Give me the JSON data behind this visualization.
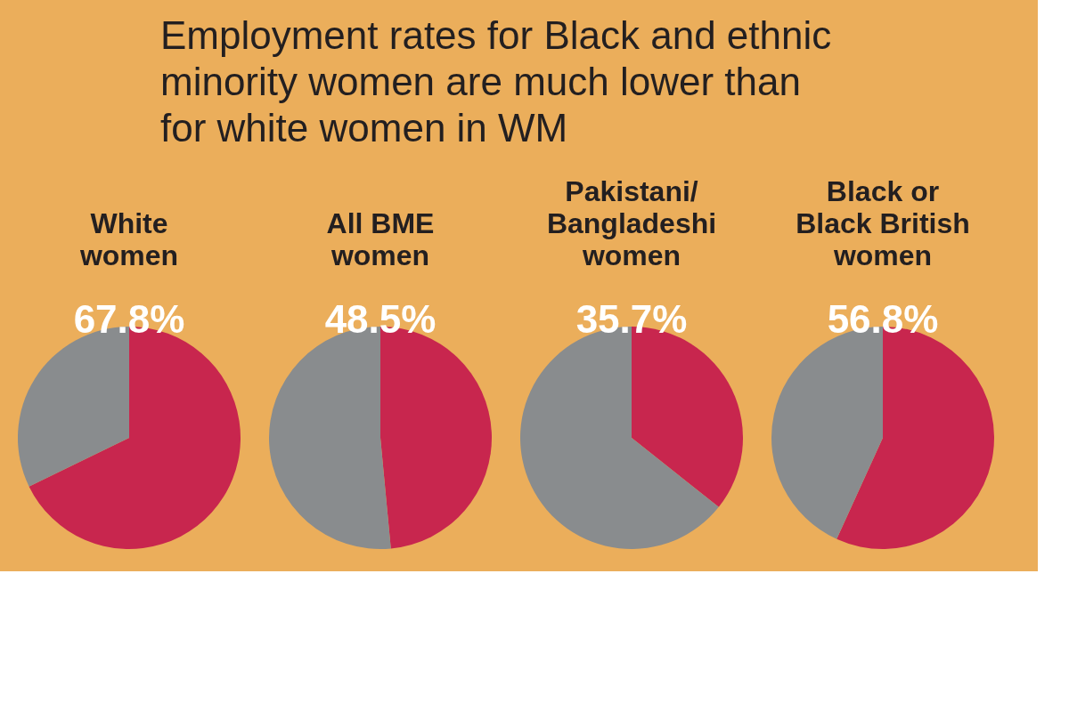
{
  "chart_data": [
    {
      "type": "other",
      "title": "Employment rates for Black and ethnic\nminority women are much lower than\nfor white women in WM"
    },
    {
      "type": "pie",
      "title": "White\nwomen",
      "categories": [
        null,
        null
      ],
      "values": [
        67.8,
        32.2
      ],
      "colors": [
        "#c8264e",
        "#898c8e"
      ],
      "value_labels": [
        "67.8%",
        null
      ]
    },
    {
      "type": "pie",
      "title": "All BME\nwomen",
      "categories": [
        null,
        null
      ],
      "values": [
        48.5,
        51.5
      ],
      "colors": [
        "#c8264e",
        "#898c8e"
      ],
      "value_labels": [
        "48.5%",
        null
      ]
    },
    {
      "type": "pie",
      "title": "Pakistani/\nBangladeshi\nwomen",
      "categories": [
        null,
        null
      ],
      "values": [
        35.7,
        64.3
      ],
      "colors": [
        "#c8264e",
        "#898c8e"
      ],
      "value_labels": [
        "35.7%",
        null
      ]
    },
    {
      "type": "pie",
      "title": "Black or\nBlack British\nwomen",
      "categories": [
        null,
        null
      ],
      "values": [
        56.8,
        43.2
      ],
      "colors": [
        "#c8264e",
        "#898c8e"
      ],
      "value_labels": [
        "56.8%",
        null
      ]
    }
  ]
}
